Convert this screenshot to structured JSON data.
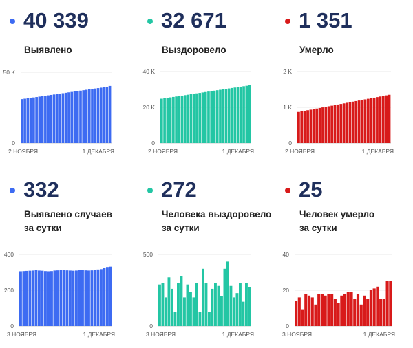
{
  "colors": {
    "blue": "#3d6bf2",
    "green": "#23c6a4",
    "red": "#d81a1a"
  },
  "panels": [
    {
      "id": "p1",
      "value": "40 339",
      "label_lines": [
        "Выявлено"
      ],
      "color": "blue"
    },
    {
      "id": "p2",
      "value": "32 671",
      "label_lines": [
        "Выздоровело"
      ],
      "color": "green"
    },
    {
      "id": "p3",
      "value": "1 351",
      "label_lines": [
        "Умерло"
      ],
      "color": "red"
    },
    {
      "id": "p4",
      "value": "332",
      "label_lines": [
        "Выявлено случаев",
        "за сутки"
      ],
      "color": "blue"
    },
    {
      "id": "p5",
      "value": "272",
      "label_lines": [
        "Человека выздоровело",
        "за сутки"
      ],
      "color": "green"
    },
    {
      "id": "p6",
      "value": "25",
      "label_lines": [
        "Человек умерло",
        "за сутки"
      ],
      "color": "red"
    }
  ],
  "chart_data": [
    {
      "type": "bar",
      "panel": "p1",
      "title": "Выявлено",
      "color": "blue",
      "x_start_label": "2 НОЯБРЯ",
      "x_end_label": "1 ДЕКАБРЯ",
      "y_ticks": [
        {
          "v": 0,
          "label": "0"
        },
        {
          "v": 50000,
          "label": "50 K"
        }
      ],
      "ylim": [
        0,
        50000
      ],
      "values": [
        31000,
        31300,
        31600,
        31900,
        32200,
        32500,
        32800,
        33100,
        33400,
        33700,
        34000,
        34300,
        34600,
        34900,
        35200,
        35500,
        35800,
        36100,
        36400,
        36700,
        37000,
        37300,
        37600,
        37900,
        38200,
        38500,
        38800,
        39100,
        39400,
        39700,
        40339
      ]
    },
    {
      "type": "bar",
      "panel": "p2",
      "title": "Выздоровело",
      "color": "green",
      "x_start_label": "2 НОЯБРЯ",
      "x_end_label": "1 ДЕКАБРЯ",
      "y_ticks": [
        {
          "v": 0,
          "label": "0"
        },
        {
          "v": 20000,
          "label": "20 K"
        },
        {
          "v": 40000,
          "label": "40 K"
        }
      ],
      "ylim": [
        0,
        40000
      ],
      "values": [
        24800,
        25050,
        25300,
        25550,
        25800,
        26050,
        26300,
        26550,
        26800,
        27050,
        27300,
        27550,
        27800,
        28050,
        28300,
        28550,
        28800,
        29050,
        29300,
        29550,
        29800,
        30050,
        30300,
        30550,
        30800,
        31050,
        31300,
        31550,
        31800,
        32050,
        32671
      ]
    },
    {
      "type": "bar",
      "panel": "p3",
      "title": "Умерло",
      "color": "red",
      "x_start_label": "2 НОЯБРЯ",
      "x_end_label": "1 ДЕКАБРЯ",
      "y_ticks": [
        {
          "v": 0,
          "label": "0"
        },
        {
          "v": 1000,
          "label": "1 K"
        },
        {
          "v": 2000,
          "label": "2 K"
        }
      ],
      "ylim": [
        0,
        2000
      ],
      "values": [
        870,
        886,
        902,
        918,
        934,
        950,
        966,
        982,
        998,
        1014,
        1030,
        1046,
        1062,
        1078,
        1094,
        1110,
        1126,
        1142,
        1158,
        1174,
        1190,
        1206,
        1222,
        1238,
        1254,
        1270,
        1286,
        1302,
        1318,
        1334,
        1351
      ]
    },
    {
      "type": "bar",
      "panel": "p4",
      "title": "Выявлено случаев за сутки",
      "color": "blue",
      "x_start_label": "3 НОЯБРЯ",
      "x_end_label": "1 ДЕКАБРЯ",
      "y_ticks": [
        {
          "v": 0,
          "label": "0"
        },
        {
          "v": 200,
          "label": "200"
        },
        {
          "v": 400,
          "label": "400"
        }
      ],
      "ylim": [
        0,
        400
      ],
      "values": [
        306,
        307,
        308,
        309,
        310,
        312,
        310,
        309,
        307,
        306,
        307,
        310,
        311,
        312,
        312,
        311,
        310,
        309,
        310,
        312,
        313,
        311,
        310,
        311,
        314,
        316,
        318,
        324,
        330,
        332
      ]
    },
    {
      "type": "bar",
      "panel": "p5",
      "title": "Человека выздоровело за сутки",
      "color": "green",
      "x_start_label": "3 НОЯБРЯ",
      "x_end_label": "1 ДЕКАБРЯ",
      "y_ticks": [
        {
          "v": 0,
          "label": "0"
        },
        {
          "v": 500,
          "label": "500"
        }
      ],
      "ylim": [
        0,
        500
      ],
      "values": [
        290,
        300,
        200,
        340,
        260,
        100,
        300,
        350,
        200,
        290,
        240,
        200,
        300,
        100,
        400,
        300,
        100,
        260,
        300,
        280,
        210,
        400,
        450,
        280,
        200,
        230,
        300,
        170,
        300,
        272
      ]
    },
    {
      "type": "bar",
      "panel": "p6",
      "title": "Человек умерло за сутки",
      "color": "red",
      "x_start_label": "3 НОЯБРЯ",
      "x_end_label": "1 ДЕКАБРЯ",
      "y_ticks": [
        {
          "v": 0,
          "label": "0"
        },
        {
          "v": 20,
          "label": "20"
        },
        {
          "v": 40,
          "label": "40"
        }
      ],
      "ylim": [
        0,
        40
      ],
      "values": [
        14,
        16,
        9,
        18,
        17,
        16,
        12,
        18,
        18,
        17,
        18,
        18,
        15,
        13,
        17,
        18,
        19,
        19,
        15,
        18,
        12,
        17,
        15,
        20,
        21,
        22,
        15,
        15,
        25,
        25
      ]
    }
  ]
}
